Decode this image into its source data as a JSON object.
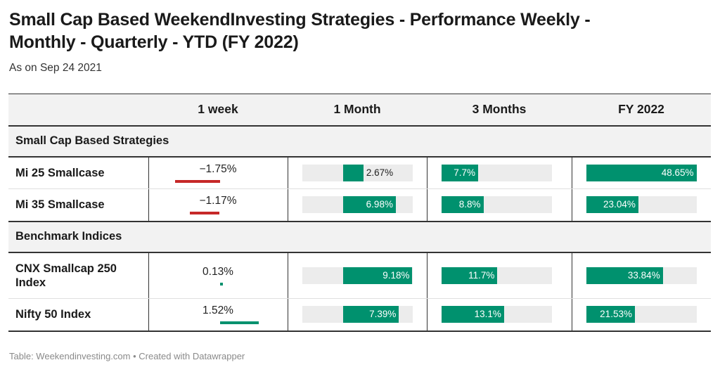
{
  "title": "Small Cap Based WeekendInvesting Strategies - Performance Weekly - Monthly - Quarterly - YTD (FY 2022)",
  "subtitle": "As on Sep 24 2021",
  "footer": "Table: Weekendinvesting.com • Created with Datawrapper",
  "colors": {
    "positive": "#00916e",
    "negative": "#c62828",
    "track": "#ececec",
    "header_bg": "#f2f2f2"
  },
  "chart_data": {
    "type": "table",
    "columns": [
      "",
      "1 week",
      "1 Month",
      "3 Months",
      "FY 2022"
    ],
    "groups": [
      {
        "label": "Small Cap Based Strategies",
        "rows": [
          {
            "name": "Mi 25 Smallcase",
            "values": [
              -1.75,
              2.67,
              7.7,
              48.65
            ],
            "labels": [
              "−1.75%",
              "2.67%",
              "7.7%",
              "48.65%"
            ]
          },
          {
            "name": "Mi 35 Smallcase",
            "values": [
              -1.17,
              6.98,
              8.8,
              23.04
            ],
            "labels": [
              "−1.17%",
              "6.98%",
              "8.8%",
              "23.04%"
            ]
          }
        ]
      },
      {
        "label": "Benchmark Indices",
        "rows": [
          {
            "name": "CNX Smallcap 250 Index",
            "values": [
              0.13,
              9.18,
              11.7,
              33.84
            ],
            "labels": [
              "0.13%",
              "9.18%",
              "11.7%",
              "33.84%"
            ]
          },
          {
            "name": "Nifty 50 Index",
            "values": [
              1.52,
              7.39,
              13.1,
              21.53
            ],
            "labels": [
              "1.52%",
              "7.39%",
              "13.1%",
              "21.53%"
            ]
          }
        ]
      }
    ],
    "column_scales": [
      {
        "min": -2.0,
        "max": 2.0
      },
      {
        "min": -5.5,
        "max": 9.18
      },
      {
        "min": 0,
        "max": 23.0
      },
      {
        "min": 0,
        "max": 48.65
      }
    ]
  }
}
